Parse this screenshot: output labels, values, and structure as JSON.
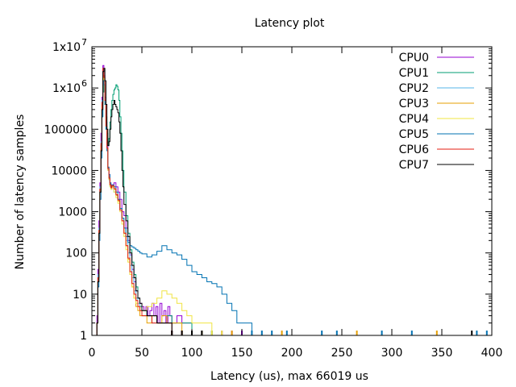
{
  "chart_data": {
    "type": "line",
    "title": "Latency plot",
    "xlabel": "Latency (us), max 66019 us",
    "ylabel": "Number of latency samples",
    "xlim": [
      0,
      400
    ],
    "ylim": [
      1,
      10000000
    ],
    "yscale": "log",
    "grid": false,
    "legend": "top-right",
    "x_ticks": [
      0,
      50,
      100,
      150,
      200,
      250,
      300,
      350,
      400
    ],
    "x_tick_labels": [
      "0",
      "50",
      "100",
      "150",
      "200",
      "250",
      "300",
      "350",
      "400"
    ],
    "y_ticks": [
      1,
      10,
      100,
      1000,
      10000,
      100000,
      1000000,
      10000000
    ],
    "y_tick_labels": [
      "1",
      "10",
      "100",
      "1000",
      "10000",
      "100000",
      "1x10",
      "1x10"
    ],
    "y_tick_superscripts": [
      "",
      "",
      "",
      "",
      "",
      "",
      "6",
      "7"
    ],
    "series": [
      {
        "name": "CPU0",
        "color": "#9400d3",
        "x": [
          2,
          3,
          5,
          6,
          7,
          8,
          9,
          10,
          11,
          12,
          13,
          14,
          15,
          16,
          17,
          18,
          19,
          20,
          22,
          24,
          26,
          28,
          30,
          32,
          34,
          36,
          38,
          40,
          42,
          44,
          46,
          48,
          50,
          52,
          54,
          56,
          58,
          60,
          62,
          64,
          66,
          68,
          70,
          72,
          74,
          76,
          78,
          80,
          85,
          90,
          95,
          100,
          110,
          120,
          130,
          140,
          150
        ],
        "y": [
          1,
          1,
          3,
          40,
          600,
          5000,
          80000,
          600000,
          3500000,
          2000000,
          600000,
          150000,
          40000,
          12000,
          8000,
          5000,
          4000,
          4500,
          5000,
          4000,
          3000,
          2000,
          1000,
          800,
          400,
          200,
          90,
          40,
          20,
          12,
          8,
          6,
          5,
          4,
          5,
          3,
          4,
          6,
          3,
          5,
          2,
          6,
          3,
          4,
          2,
          5,
          3,
          2,
          3,
          2,
          2,
          1,
          1,
          1,
          1,
          1,
          1
        ]
      },
      {
        "name": "CPU1",
        "color": "#009e73",
        "x": [
          2,
          3,
          5,
          6,
          7,
          8,
          9,
          10,
          11,
          12,
          13,
          14,
          15,
          16,
          17,
          18,
          19,
          20,
          21,
          22,
          23,
          24,
          25,
          26,
          27,
          28,
          29,
          30,
          31,
          32,
          34,
          36,
          38,
          40,
          42,
          44,
          46,
          48,
          50,
          55,
          60,
          65,
          70,
          75,
          80,
          90,
          100,
          110,
          120
        ],
        "y": [
          1,
          1,
          2,
          20,
          300,
          3000,
          30000,
          200000,
          800000,
          1200000,
          600000,
          200000,
          80000,
          40000,
          60000,
          150000,
          300000,
          500000,
          700000,
          900000,
          1000000,
          1200000,
          1100000,
          900000,
          500000,
          200000,
          80000,
          30000,
          10000,
          3000,
          800,
          300,
          120,
          60,
          30,
          15,
          8,
          5,
          4,
          3,
          3,
          2,
          2,
          3,
          2,
          2,
          1,
          1,
          1
        ]
      },
      {
        "name": "CPU2",
        "color": "#56b4e9",
        "x": [
          2,
          3,
          5,
          6,
          7,
          8,
          9,
          10,
          11,
          12,
          13,
          14,
          15,
          16,
          17,
          18,
          19,
          20,
          22,
          24,
          26,
          28,
          30,
          32,
          34,
          36,
          38,
          40,
          42,
          44,
          46,
          48,
          50,
          55,
          60,
          65,
          70,
          80,
          90,
          100,
          120
        ],
        "y": [
          1,
          1,
          2,
          30,
          400,
          4000,
          50000,
          500000,
          2500000,
          1500000,
          400000,
          100000,
          30000,
          10000,
          6000,
          4000,
          3500,
          4000,
          3000,
          2500,
          2000,
          1200,
          700,
          400,
          200,
          100,
          50,
          25,
          12,
          8,
          6,
          4,
          3,
          3,
          2,
          2,
          2,
          1,
          1,
          1,
          1
        ]
      },
      {
        "name": "CPU3",
        "color": "#e69f00",
        "x": [
          2,
          3,
          5,
          6,
          7,
          8,
          9,
          10,
          11,
          12,
          13,
          14,
          15,
          16,
          17,
          18,
          19,
          20,
          22,
          24,
          26,
          28,
          30,
          32,
          34,
          36,
          38,
          40,
          42,
          44,
          46,
          48,
          50,
          55,
          60,
          65,
          70,
          75,
          80,
          90,
          100,
          110,
          140,
          190,
          265,
          345
        ],
        "y": [
          1,
          1,
          2,
          25,
          350,
          3500,
          40000,
          400000,
          2000000,
          1500000,
          500000,
          120000,
          35000,
          12000,
          7000,
          4500,
          3800,
          4200,
          3500,
          2500,
          1800,
          1100,
          600,
          300,
          150,
          70,
          30,
          15,
          8,
          5,
          4,
          3,
          3,
          2,
          3,
          2,
          3,
          2,
          2,
          1,
          1,
          1,
          1,
          1,
          1,
          1
        ]
      },
      {
        "name": "CPU4",
        "color": "#f0e442",
        "x": [
          2,
          3,
          5,
          6,
          7,
          8,
          9,
          10,
          11,
          12,
          13,
          14,
          15,
          16,
          17,
          18,
          19,
          20,
          22,
          24,
          26,
          28,
          30,
          32,
          34,
          36,
          38,
          40,
          42,
          44,
          46,
          48,
          50,
          55,
          60,
          65,
          70,
          75,
          80,
          85,
          90,
          95,
          100,
          110,
          120,
          130
        ],
        "y": [
          1,
          1,
          2,
          20,
          300,
          3000,
          35000,
          350000,
          1800000,
          1300000,
          400000,
          100000,
          30000,
          10000,
          6000,
          4000,
          3500,
          4000,
          3000,
          2200,
          1600,
          1000,
          500,
          250,
          120,
          60,
          30,
          15,
          8,
          6,
          5,
          4,
          4,
          5,
          6,
          8,
          12,
          10,
          8,
          6,
          4,
          3,
          2,
          2,
          1,
          1
        ]
      },
      {
        "name": "CPU5",
        "color": "#0072b2",
        "x": [
          2,
          3,
          5,
          6,
          7,
          8,
          9,
          10,
          11,
          12,
          13,
          14,
          15,
          16,
          17,
          18,
          19,
          20,
          22,
          24,
          26,
          28,
          30,
          32,
          34,
          36,
          38,
          40,
          42,
          44,
          46,
          48,
          50,
          55,
          60,
          65,
          70,
          75,
          80,
          85,
          90,
          95,
          100,
          105,
          110,
          115,
          120,
          125,
          130,
          135,
          140,
          145,
          150,
          160,
          170,
          180,
          195,
          230,
          245,
          290,
          320,
          385,
          395
        ],
        "y": [
          1,
          1,
          2,
          15,
          200,
          2000,
          20000,
          200000,
          1500000,
          1200000,
          400000,
          100000,
          30000,
          12000,
          8000,
          5000,
          4000,
          4500,
          4000,
          3000,
          2000,
          1200,
          700,
          400,
          250,
          180,
          150,
          140,
          130,
          120,
          110,
          100,
          95,
          80,
          90,
          110,
          150,
          120,
          100,
          90,
          70,
          50,
          35,
          30,
          25,
          20,
          18,
          15,
          10,
          6,
          4,
          2,
          2,
          1,
          1,
          1,
          1,
          1,
          1,
          1,
          1,
          1,
          1
        ]
      },
      {
        "name": "CPU6",
        "color": "#e51e10",
        "x": [
          2,
          3,
          5,
          6,
          7,
          8,
          9,
          10,
          11,
          12,
          13,
          14,
          15,
          16,
          17,
          18,
          19,
          20,
          22,
          24,
          26,
          28,
          30,
          32,
          34,
          36,
          38,
          40,
          42,
          44,
          46,
          48,
          50,
          55,
          60,
          65,
          70,
          75,
          80,
          90,
          100
        ],
        "y": [
          1,
          1,
          2,
          25,
          350,
          3500,
          45000,
          450000,
          3000000,
          1800000,
          500000,
          120000,
          35000,
          11000,
          6500,
          4500,
          3800,
          4300,
          3600,
          2600,
          1900,
          1100,
          600,
          300,
          150,
          75,
          35,
          18,
          10,
          7,
          5,
          4,
          3,
          3,
          2,
          2,
          2,
          2,
          1,
          1,
          1
        ]
      },
      {
        "name": "CPU7",
        "color": "#000000",
        "x": [
          2,
          3,
          5,
          6,
          7,
          8,
          9,
          10,
          11,
          12,
          13,
          14,
          15,
          16,
          17,
          18,
          19,
          20,
          21,
          22,
          23,
          24,
          25,
          26,
          27,
          28,
          29,
          30,
          31,
          32,
          34,
          36,
          38,
          40,
          42,
          44,
          46,
          48,
          50,
          55,
          60,
          65,
          70,
          75,
          80,
          90,
          100,
          110,
          380
        ],
        "y": [
          1,
          1,
          2,
          20,
          300,
          3000,
          30000,
          300000,
          2500000,
          3000000,
          1500000,
          400000,
          100000,
          40000,
          50000,
          100000,
          200000,
          300000,
          400000,
          500000,
          400000,
          350000,
          300000,
          250000,
          150000,
          80000,
          30000,
          10000,
          4000,
          1500,
          600,
          250,
          100,
          50,
          25,
          12,
          8,
          6,
          4,
          3,
          3,
          2,
          2,
          2,
          1,
          1,
          1,
          1,
          1
        ]
      }
    ]
  }
}
